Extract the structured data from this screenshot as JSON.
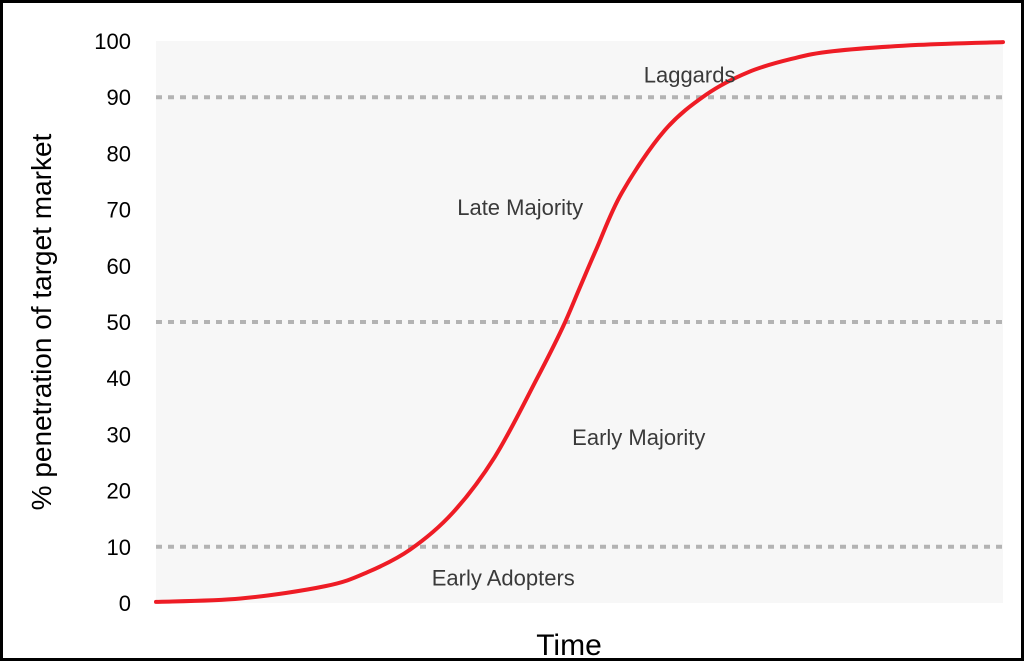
{
  "chart_data": {
    "type": "line",
    "title": "",
    "xlabel": "Time",
    "ylabel": "% penetration of target market",
    "ylim": [
      0,
      100
    ],
    "yticks": [
      0,
      10,
      20,
      30,
      40,
      50,
      60,
      70,
      80,
      90,
      100
    ],
    "xlim": [
      0,
      100
    ],
    "grid": false,
    "threshold_lines": [
      10,
      50,
      90
    ],
    "colors": {
      "curve": "#ee1c25",
      "threshold": "#b3b3b3",
      "plot_background": "#f7f7f7"
    },
    "segments": [
      {
        "label": "Early Adopters",
        "x": 41,
        "y": 4.5
      },
      {
        "label": "Early Majority",
        "x": 57,
        "y": 29.5
      },
      {
        "label": "Late Majority",
        "x": 43,
        "y": 70.5
      },
      {
        "label": "Laggards",
        "x": 63,
        "y": 94
      }
    ],
    "series": [
      {
        "x": [
          0,
          10,
          20,
          25,
          30,
          35,
          40,
          45,
          48,
          50,
          52,
          55,
          60,
          65,
          70,
          75,
          80,
          90,
          100
        ],
        "values": [
          0.2,
          0.8,
          3,
          5.5,
          9.5,
          16,
          26,
          40,
          49,
          56,
          63,
          73,
          84,
          90.5,
          94.5,
          96.8,
          98.2,
          99.3,
          99.8
        ]
      }
    ]
  }
}
